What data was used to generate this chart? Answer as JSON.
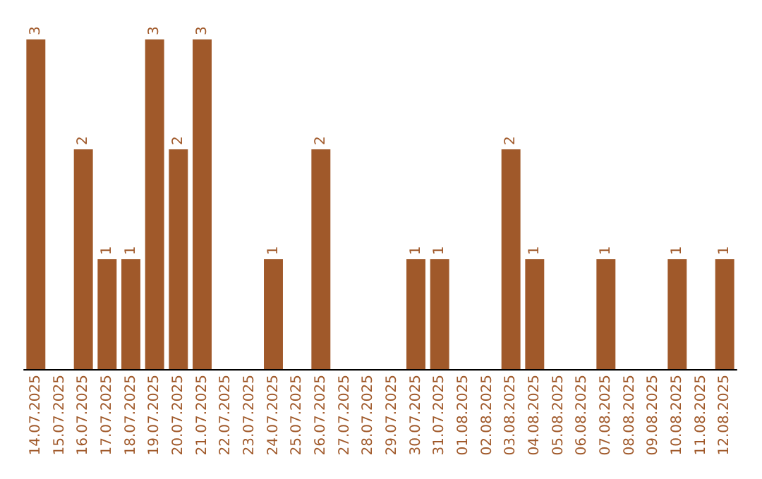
{
  "chart_data": {
    "type": "bar",
    "categories": [
      "14.07.2025",
      "15.07.2025",
      "16.07.2025",
      "17.07.2025",
      "18.07.2025",
      "19.07.2025",
      "20.07.2025",
      "21.07.2025",
      "22.07.2025",
      "23.07.2025",
      "24.07.2025",
      "25.07.2025",
      "26.07.2025",
      "27.07.2025",
      "28.07.2025",
      "29.07.2025",
      "30.07.2025",
      "31.07.2025",
      "01.08.2025",
      "02.08.2025",
      "03.08.2025",
      "04.08.2025",
      "05.08.2025",
      "06.08.2025",
      "07.08.2025",
      "08.08.2025",
      "09.08.2025",
      "10.08.2025",
      "11.08.2025",
      "12.08.2025"
    ],
    "values": [
      3,
      0,
      2,
      1,
      1,
      3,
      2,
      3,
      0,
      0,
      1,
      0,
      2,
      0,
      0,
      0,
      1,
      1,
      0,
      0,
      2,
      1,
      0,
      0,
      1,
      0,
      0,
      1,
      0,
      1
    ],
    "value_labels": [
      "3",
      null,
      "2",
      "1",
      "1",
      "3",
      "2",
      "3",
      null,
      null,
      "1",
      null,
      "2",
      null,
      null,
      null,
      "1",
      "1",
      null,
      null,
      "2",
      "1",
      null,
      null,
      "1",
      null,
      null,
      "1",
      null,
      "1"
    ],
    "color": "#a0592a",
    "ylim": [
      0,
      3
    ],
    "tick_labels": "x",
    "grid": false
  }
}
